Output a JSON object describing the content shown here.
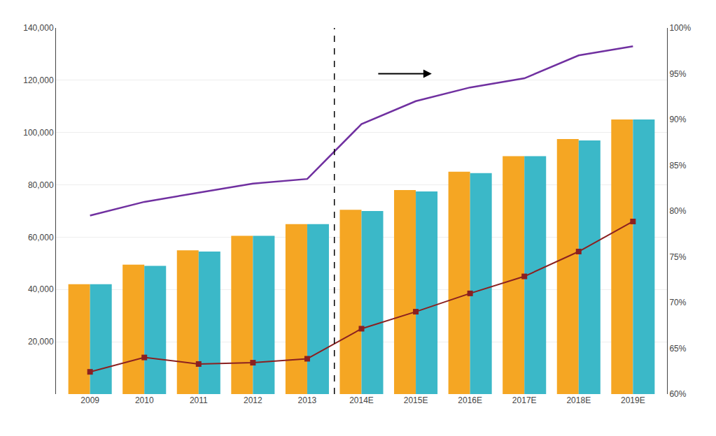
{
  "chart_data": {
    "type": "bar",
    "categories": [
      "2009",
      "2010",
      "2011",
      "2012",
      "2013",
      "2014E",
      "2015E",
      "2016E",
      "2017E",
      "2018E",
      "2019E"
    ],
    "series": [
      {
        "type": "bar",
        "color": "#F5A623",
        "values": [
          42000,
          49500,
          55000,
          60500,
          65000,
          70500,
          78000,
          85000,
          91000,
          97500,
          105000
        ]
      },
      {
        "type": "bar",
        "color": "#3BB8C8",
        "values": [
          42000,
          49000,
          54500,
          60500,
          65000,
          70000,
          77500,
          84500,
          91000,
          97000,
          105000
        ]
      },
      {
        "type": "line",
        "axis": "y2",
        "color": "#7030A0",
        "line_style": "solid",
        "values": [
          79.5,
          81.0,
          82.0,
          83.0,
          83.5,
          89.5,
          92.0,
          93.5,
          94.5,
          97.0,
          98.0
        ]
      },
      {
        "type": "line",
        "color": "#8B2020",
        "marker": "square",
        "line_style": "solid",
        "values": [
          8500,
          14000,
          11500,
          12000,
          13500,
          25000,
          31500,
          38500,
          45000,
          54500,
          66000
        ]
      }
    ],
    "ylim": [
      0,
      140000
    ],
    "yticks": [
      {
        "value": 20000,
        "label": "20,000"
      },
      {
        "value": 40000,
        "label": "40,000"
      },
      {
        "value": 60000,
        "label": "60,000"
      },
      {
        "value": 80000,
        "label": "80,000"
      },
      {
        "value": 100000,
        "label": "100,000"
      },
      {
        "value": 120000,
        "label": "120,000"
      },
      {
        "value": 140000,
        "label": "140,000"
      }
    ],
    "y2lim": [
      60,
      100
    ],
    "y2ticks": [
      {
        "value": 60,
        "label": "60%"
      },
      {
        "value": 65,
        "label": "65%"
      },
      {
        "value": 70,
        "label": "70%"
      },
      {
        "value": 75,
        "label": "75%"
      },
      {
        "value": 80,
        "label": "80%"
      },
      {
        "value": 85,
        "label": "85%"
      },
      {
        "value": 90,
        "label": "90%"
      },
      {
        "value": 95,
        "label": "95%"
      },
      {
        "value": 100,
        "label": "100%"
      }
    ],
    "grid": true,
    "annotations": [
      {
        "type": "vline",
        "after": "2013",
        "line_style": "dashed"
      },
      {
        "type": "arrow"
      }
    ]
  }
}
